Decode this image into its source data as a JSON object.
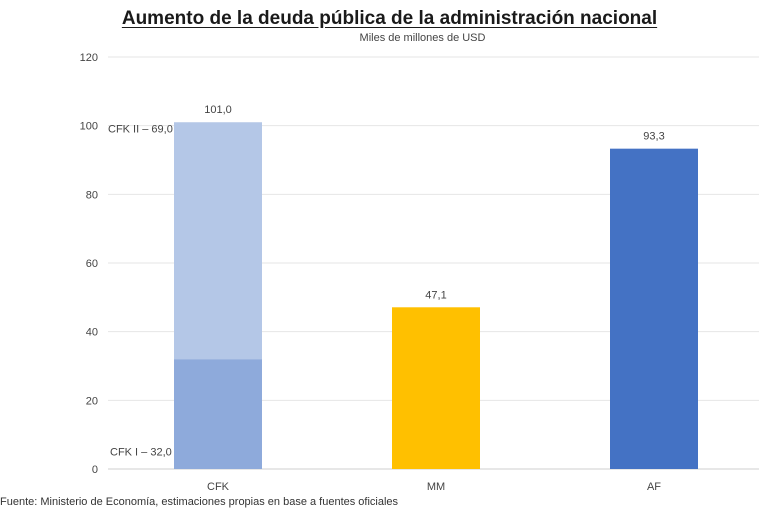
{
  "title": "Aumento de la deuda pública de la administración nacional",
  "subtitle": "Miles de millones de USD",
  "source": "Fuente: Ministerio de Economía, estimaciones propias en base a fuentes oficiales",
  "chart_data": {
    "type": "bar",
    "stacked": true,
    "title": "Aumento de la deuda pública de la administración nacional",
    "subtitle": "Miles de millones de USD",
    "categories": [
      "CFK",
      "MM",
      "AF"
    ],
    "ylim": [
      0,
      120
    ],
    "yticks": [
      0,
      20,
      40,
      60,
      80,
      100,
      120
    ],
    "grid": true,
    "series": [
      {
        "name": "CFK I",
        "values": [
          32.0,
          null,
          null
        ],
        "color": "#8eaadb"
      },
      {
        "name": "CFK II",
        "values": [
          69.0,
          null,
          null
        ],
        "color": "#b4c7e7"
      },
      {
        "name": "MM",
        "values": [
          null,
          47.1,
          null
        ],
        "color": "#ffc000"
      },
      {
        "name": "AF",
        "values": [
          null,
          null,
          93.3
        ],
        "color": "#4472c4"
      }
    ],
    "data_labels": [
      "101,0",
      "47,1",
      "93,3"
    ],
    "segment_labels": [
      "CFK I – 32,0",
      "CFK II – 69,0"
    ]
  }
}
